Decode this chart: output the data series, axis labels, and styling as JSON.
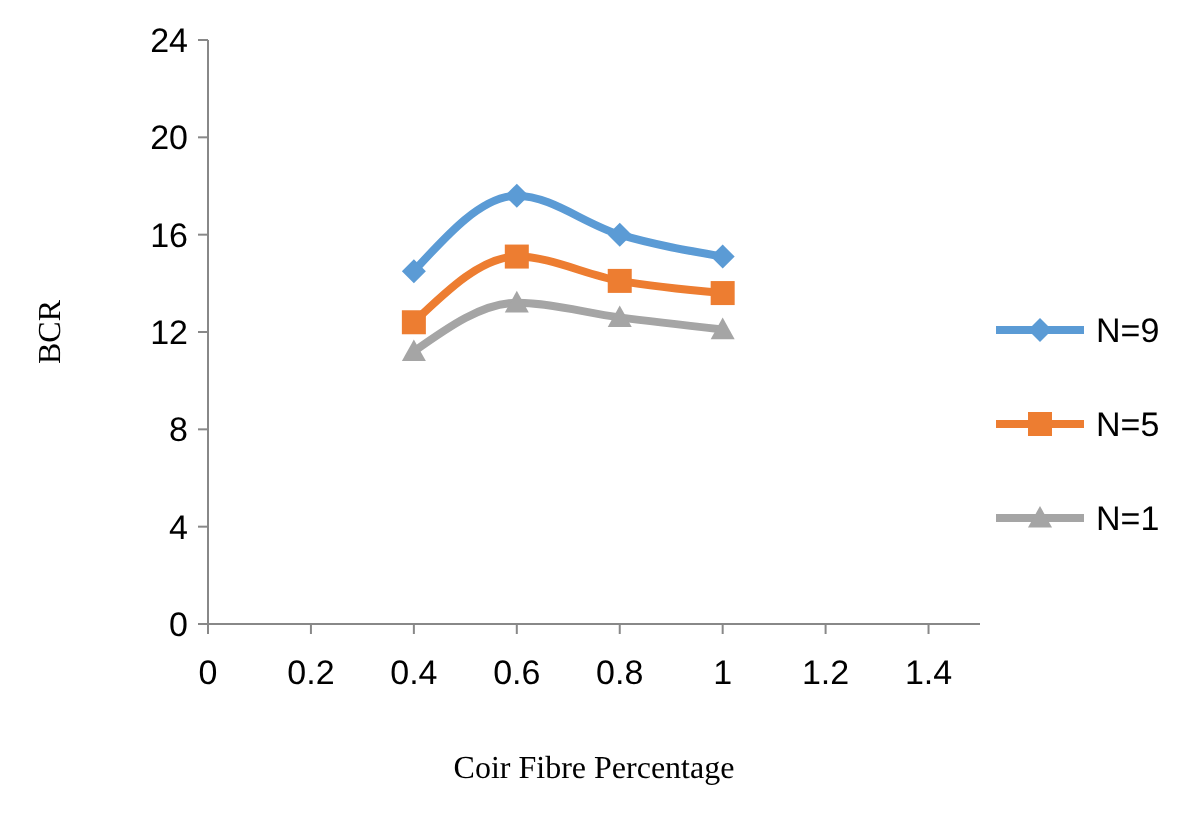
{
  "chart_data": {
    "type": "line",
    "xlabel": "Coir Fibre Percentage",
    "ylabel": "BCR",
    "x": [
      0.4,
      0.6,
      0.8,
      1
    ],
    "series": [
      {
        "name": "N=9",
        "color": "#5b9bd5",
        "marker": "diamond",
        "values": [
          14.5,
          17.6,
          16.0,
          15.1
        ]
      },
      {
        "name": "N=5",
        "color": "#ed7d31",
        "marker": "square",
        "values": [
          12.4,
          15.1,
          14.1,
          13.6
        ]
      },
      {
        "name": "N=1",
        "color": "#a5a5a5",
        "marker": "triangle",
        "values": [
          11.2,
          13.2,
          12.6,
          12.1
        ]
      }
    ],
    "xlim": [
      0,
      1.5
    ],
    "xticks": [
      0,
      0.2,
      0.4,
      0.6,
      0.8,
      1,
      1.2,
      1.4
    ],
    "ylim": [
      0,
      24
    ],
    "yticks": [
      0,
      4,
      8,
      12,
      16,
      20,
      24
    ],
    "grid": false,
    "legend": "right"
  }
}
